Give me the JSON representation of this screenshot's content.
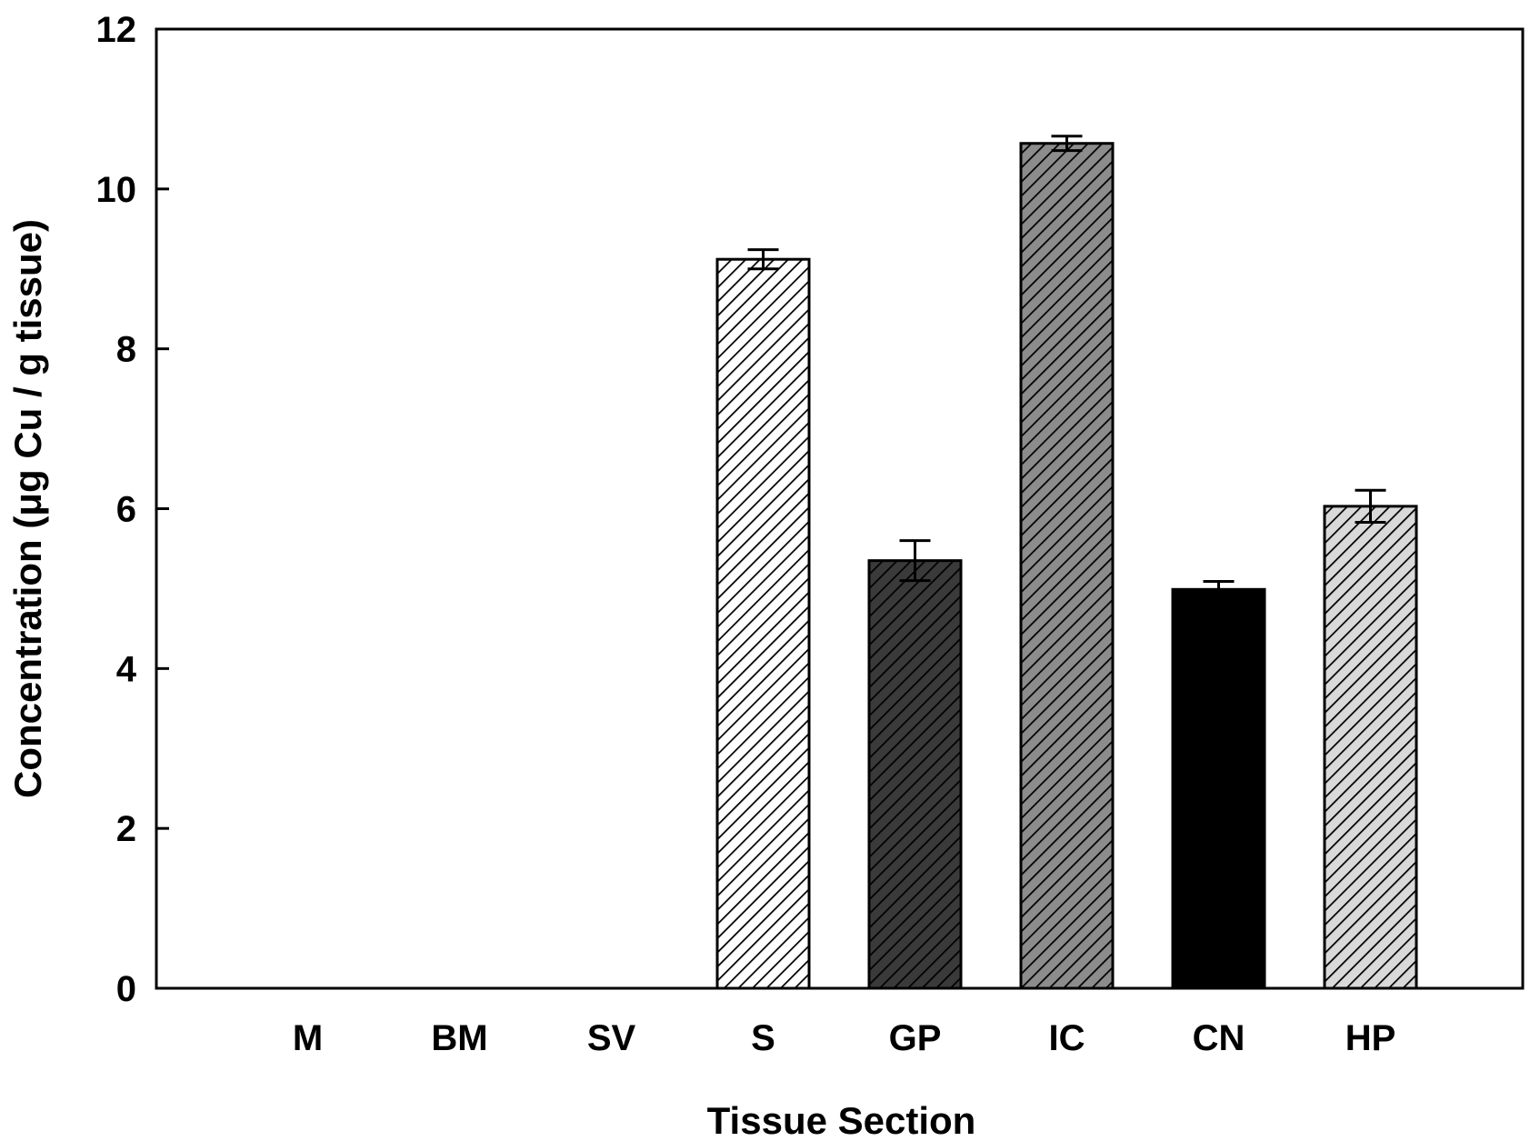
{
  "chart_data": {
    "type": "bar",
    "xlabel": "Tissue Section",
    "ylabel": "Concentration (μg Cu / g tissue)",
    "ylim": [
      0,
      12
    ],
    "yticks": [
      "0",
      "2",
      "4",
      "6",
      "8",
      "10",
      "12"
    ],
    "categories": [
      "M",
      "BM",
      "SV",
      "S",
      "GP",
      "IC",
      "CN",
      "HP"
    ],
    "values": [
      0,
      0,
      0,
      9.12,
      5.35,
      10.57,
      4.99,
      6.03
    ],
    "errors": [
      0,
      0,
      0,
      0.12,
      0.25,
      0.09,
      0.1,
      0.2
    ],
    "bar_styles": [
      {
        "pattern": "none",
        "fill": "#ffffff"
      },
      {
        "pattern": "none",
        "fill": "#ffffff"
      },
      {
        "pattern": "none",
        "fill": "#ffffff"
      },
      {
        "pattern": "hatch",
        "fill": "#ffffff"
      },
      {
        "pattern": "hatch",
        "fill": "#3a3a3a"
      },
      {
        "pattern": "hatch",
        "fill": "#8c8c8c"
      },
      {
        "pattern": "solid",
        "fill": "#000000"
      },
      {
        "pattern": "hatch",
        "fill": "#d9d9d9"
      }
    ],
    "grid": false,
    "legend": "none"
  }
}
